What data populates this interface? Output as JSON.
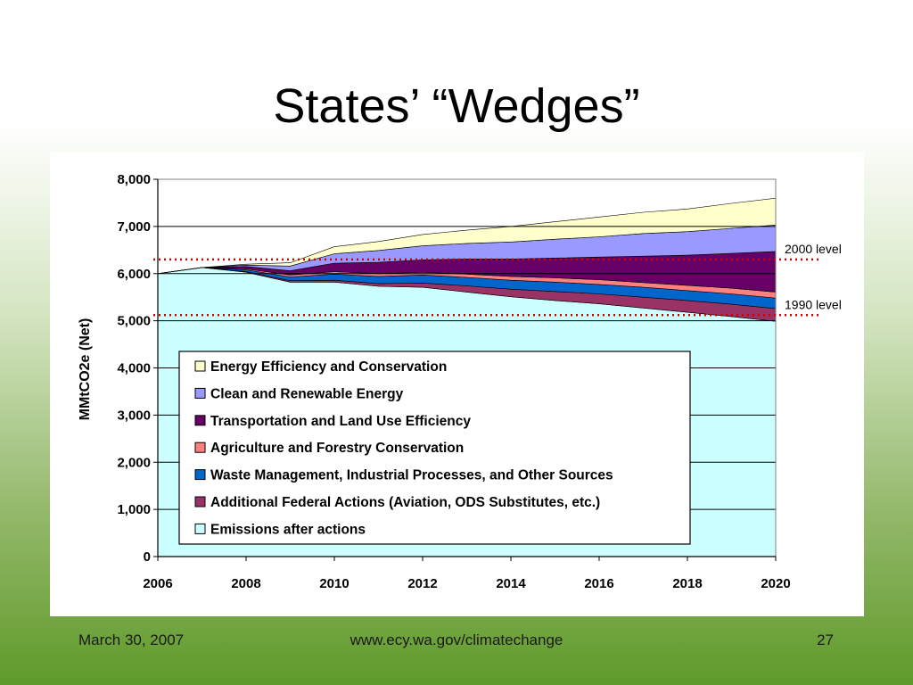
{
  "slide": {
    "title": "States’ “Wedges”",
    "footer_date": "March 30, 2007",
    "footer_url": "www.ecy.wa.gov/climatechange",
    "footer_page": "27"
  },
  "chart_data": {
    "type": "area",
    "stacked": true,
    "title": "",
    "xlabel": "",
    "ylabel": "MMtCO2e (Net)",
    "x": [
      2006,
      2007,
      2008,
      2009,
      2010,
      2011,
      2012,
      2013,
      2014,
      2015,
      2016,
      2017,
      2018,
      2019,
      2020
    ],
    "xlim": [
      2006,
      2020
    ],
    "ylim": [
      0,
      8000
    ],
    "x_ticks": [
      "2006",
      "2008",
      "2010",
      "2012",
      "2014",
      "2016",
      "2018",
      "2020"
    ],
    "x_tick_values": [
      2006,
      2008,
      2010,
      2012,
      2014,
      2016,
      2018,
      2020
    ],
    "y_ticks": [
      "0",
      "1,000",
      "2,000",
      "3,000",
      "4,000",
      "5,000",
      "6,000",
      "7,000",
      "8,000"
    ],
    "y_tick_values": [
      0,
      1000,
      2000,
      3000,
      4000,
      5000,
      6000,
      7000,
      8000
    ],
    "grid": "horizontal",
    "legend_position": "center",
    "series": [
      {
        "name": "Emissions after actions",
        "color": "#ccffff",
        "values": [
          6000,
          6130,
          6030,
          5820,
          5820,
          5730,
          5710,
          5610,
          5510,
          5430,
          5360,
          5270,
          5180,
          5090,
          4990
        ]
      },
      {
        "name": "Additional Federal Actions (Aviation, ODS Substitutes, etc.)",
        "color": "#993366",
        "values": [
          0,
          0,
          10,
          30,
          40,
          60,
          90,
          130,
          160,
          190,
          210,
          230,
          250,
          260,
          270
        ]
      },
      {
        "name": "Waste Management, Industrial Processes, and Other Sources",
        "color": "#0066cc",
        "values": [
          0,
          0,
          40,
          80,
          130,
          150,
          170,
          180,
          190,
          200,
          200,
          210,
          210,
          220,
          220
        ]
      },
      {
        "name": "Agriculture and Forestry Conservation",
        "color": "#ff8080",
        "values": [
          0,
          0,
          20,
          40,
          50,
          60,
          60,
          70,
          80,
          90,
          100,
          100,
          110,
          120,
          130
        ]
      },
      {
        "name": "Transportation and Land Use Efficiency",
        "color": "#660066",
        "values": [
          0,
          0,
          50,
          90,
          180,
          240,
          260,
          320,
          370,
          420,
          480,
          560,
          640,
          740,
          860
        ]
      },
      {
        "name": "Clean and Renewable Energy",
        "color": "#9999ff",
        "values": [
          0,
          0,
          30,
          100,
          200,
          250,
          300,
          330,
          360,
          400,
          430,
          480,
          500,
          530,
          560
        ]
      },
      {
        "name": "Energy Efficiency and Conservation",
        "color": "#ffffcc",
        "values": [
          0,
          0,
          20,
          70,
          150,
          190,
          240,
          280,
          330,
          370,
          420,
          450,
          480,
          530,
          570
        ]
      }
    ],
    "legend_order": [
      6,
      5,
      4,
      3,
      2,
      1,
      0
    ],
    "reference_lines": [
      {
        "label": "2000 level",
        "value": 6300,
        "color": "#cc0000"
      },
      {
        "label": "1990 level",
        "value": 5120,
        "color": "#cc0000"
      }
    ]
  }
}
